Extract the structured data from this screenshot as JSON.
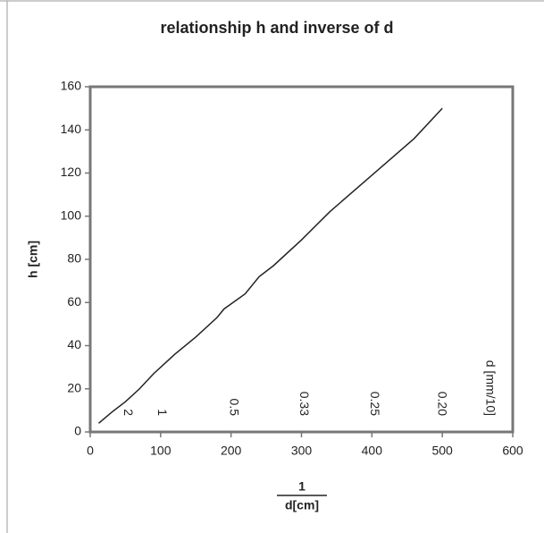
{
  "chart_data": {
    "type": "line",
    "title": "relationship h and inverse of d",
    "y_label": "h [cm]",
    "x_label": {
      "numerator": "1",
      "denominator": "d[cm]"
    },
    "x": [
      12,
      30,
      50,
      70,
      90,
      110,
      120,
      150,
      180,
      190,
      220,
      240,
      260,
      300,
      340,
      400,
      460,
      500
    ],
    "values": [
      4,
      9,
      14,
      20,
      27,
      33,
      36,
      44,
      53,
      57,
      64,
      72,
      77,
      89,
      102,
      119,
      136,
      150
    ],
    "color": "#222222",
    "xlim": [
      0,
      600
    ],
    "xticks": [
      0,
      100,
      200,
      300,
      400,
      500,
      600
    ],
    "ylim": [
      0,
      160
    ],
    "yticks": [
      0,
      20,
      40,
      60,
      80,
      100,
      120,
      140,
      160
    ],
    "grid": false,
    "annotations": [
      {
        "text": "2",
        "x": 53
      },
      {
        "text": "1",
        "x": 101
      },
      {
        "text": "0.5",
        "x": 203
      },
      {
        "text": "0.33",
        "x": 303
      },
      {
        "text": "0.25",
        "x": 403
      },
      {
        "text": "0.20",
        "x": 499
      },
      {
        "text": "d [mm/10]",
        "x": 567
      }
    ]
  }
}
